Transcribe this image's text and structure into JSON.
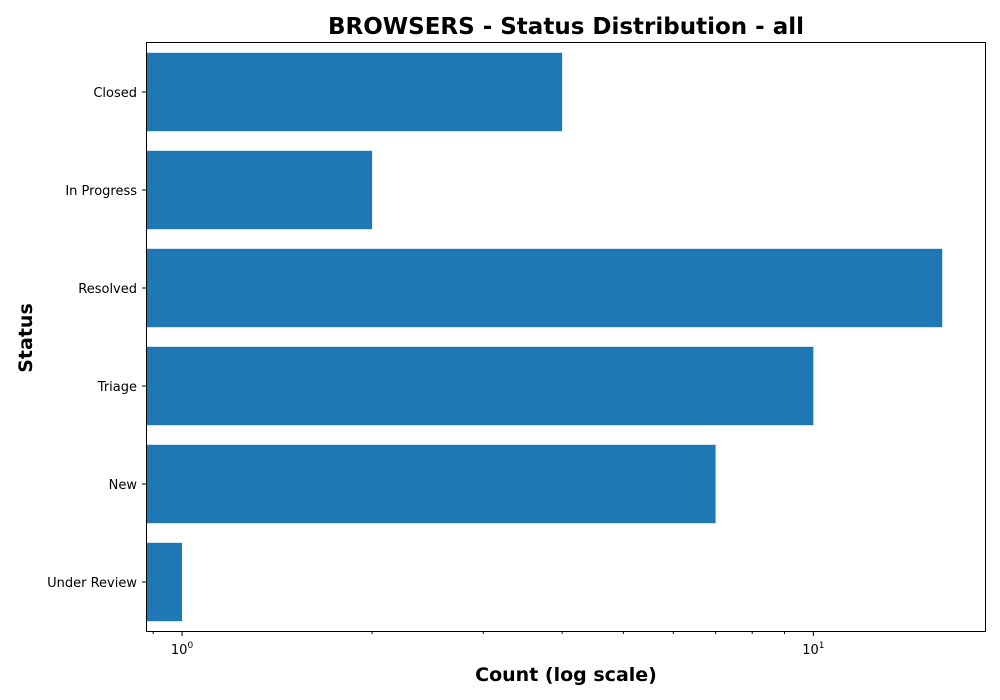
{
  "chart_data": {
    "type": "bar",
    "orientation": "horizontal",
    "title": "BROWSERS - Status Distribution - all",
    "xlabel": "Count (log scale)",
    "ylabel": "Status",
    "x_scale": "log",
    "xlim": [
      0.88,
      18.7
    ],
    "grid": false,
    "categories": [
      "Closed",
      "In Progress",
      "Resolved",
      "Triage",
      "New",
      "Under Review"
    ],
    "values": [
      4,
      2,
      16,
      10,
      7,
      1
    ],
    "x_ticks": [
      {
        "base": "10",
        "exp": "0",
        "value": 1
      },
      {
        "base": "10",
        "exp": "1",
        "value": 10
      }
    ],
    "colors": {
      "bar": "#1f77b4"
    }
  }
}
